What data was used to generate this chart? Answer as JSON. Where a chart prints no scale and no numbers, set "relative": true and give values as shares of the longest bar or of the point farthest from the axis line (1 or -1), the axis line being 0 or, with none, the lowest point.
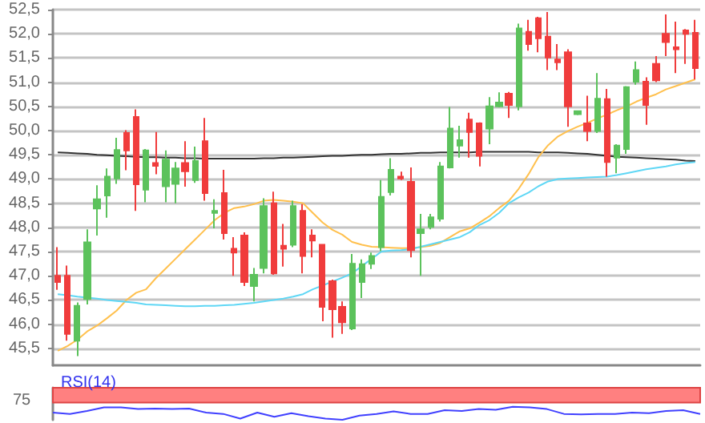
{
  "chart_data": [
    {
      "type": "candlestick",
      "categories": [
        null,
        null,
        null,
        null,
        null,
        null,
        null,
        null,
        null,
        null,
        null,
        null,
        null,
        null,
        null,
        null,
        null,
        null,
        null,
        null,
        null,
        null,
        null,
        null,
        null,
        null,
        null,
        null,
        null,
        null,
        null,
        null,
        null,
        null,
        null,
        null,
        null,
        null,
        null,
        null,
        null,
        null,
        null,
        null,
        null,
        null,
        null,
        null,
        null,
        null,
        null,
        null,
        null,
        null,
        null,
        null,
        null,
        null,
        null,
        null,
        null,
        null,
        null,
        null,
        null,
        null
      ],
      "ohlc": [
        [
          47.0,
          47.59,
          46.71,
          46.87
        ],
        [
          47.0,
          47.21,
          45.66,
          45.8
        ],
        [
          45.66,
          46.45,
          45.34,
          46.38
        ],
        [
          46.52,
          47.96,
          46.41,
          47.69
        ],
        [
          48.39,
          48.87,
          47.83,
          48.58
        ],
        [
          48.66,
          49.22,
          48.2,
          49.05
        ],
        [
          49.01,
          49.85,
          48.9,
          49.6
        ],
        [
          49.95,
          50.01,
          49.18,
          49.59
        ],
        [
          50.28,
          50.44,
          48.34,
          48.89
        ],
        [
          48.78,
          49.62,
          48.52,
          49.59
        ],
        [
          49.33,
          49.97,
          49.1,
          49.27
        ],
        [
          48.85,
          49.59,
          48.52,
          49.4
        ],
        [
          48.9,
          49.35,
          48.5,
          49.22
        ],
        [
          49.33,
          49.78,
          48.84,
          49.16
        ],
        [
          48.98,
          49.67,
          48.92,
          49.37
        ],
        [
          49.78,
          50.26,
          48.55,
          48.71
        ],
        [
          48.3,
          48.58,
          47.98,
          48.34
        ],
        [
          48.71,
          49.19,
          47.75,
          47.88
        ],
        [
          47.56,
          47.8,
          47.0,
          47.48
        ],
        [
          47.83,
          47.9,
          46.79,
          46.87
        ],
        [
          46.79,
          47.16,
          46.47,
          47.02
        ],
        [
          47.16,
          48.6,
          47.05,
          48.44
        ],
        [
          48.5,
          48.74,
          47.02,
          47.05
        ],
        [
          47.62,
          48.07,
          47.19,
          47.56
        ],
        [
          47.64,
          48.55,
          47.59,
          48.44
        ],
        [
          48.34,
          48.48,
          47.05,
          47.41
        ],
        [
          47.83,
          47.96,
          47.38,
          47.73
        ],
        [
          47.64,
          47.66,
          46.06,
          46.36
        ],
        [
          46.89,
          46.92,
          45.72,
          46.31
        ],
        [
          46.36,
          46.47,
          45.8,
          46.04
        ],
        [
          45.91,
          47.45,
          45.88,
          47.25
        ],
        [
          46.87,
          47.34,
          46.54,
          47.24
        ],
        [
          47.25,
          47.48,
          47.14,
          47.41
        ],
        [
          47.59,
          48.98,
          47.51,
          48.63
        ],
        [
          48.73,
          49.43,
          48.66,
          49.19
        ],
        [
          49.05,
          49.15,
          48.98,
          49.01
        ],
        [
          48.94,
          49.24,
          47.38,
          47.53
        ],
        [
          47.88,
          48.28,
          47.0,
          47.96
        ],
        [
          48.01,
          48.28,
          47.96,
          48.21
        ],
        [
          48.18,
          49.35,
          48.12,
          49.26
        ],
        [
          49.24,
          50.49,
          49.22,
          50.04
        ],
        [
          49.69,
          50.1,
          49.44,
          49.8
        ],
        [
          50.23,
          50.37,
          49.44,
          49.97
        ],
        [
          50.15,
          50.17,
          49.26,
          49.48
        ],
        [
          50.04,
          50.69,
          49.72,
          50.5
        ],
        [
          50.5,
          50.79,
          50.48,
          50.58
        ],
        [
          50.76,
          50.8,
          50.26,
          50.53
        ],
        [
          50.5,
          52.21,
          50.42,
          52.11
        ],
        [
          52.04,
          52.29,
          51.65,
          51.79
        ],
        [
          52.32,
          52.35,
          51.62,
          51.91
        ],
        [
          51.94,
          52.45,
          51.25,
          51.51
        ],
        [
          51.47,
          51.79,
          51.25,
          51.41
        ],
        [
          51.62,
          51.68,
          50.08,
          50.5
        ],
        [
          50.34,
          50.42,
          50.32,
          50.4
        ],
        [
          50.15,
          50.72,
          49.78,
          49.99
        ],
        [
          49.99,
          51.19,
          49.95,
          50.66
        ],
        [
          50.65,
          50.86,
          49.05,
          49.35
        ],
        [
          49.44,
          49.72,
          49.12,
          49.69
        ],
        [
          49.62,
          50.92,
          49.52,
          50.9
        ],
        [
          51.01,
          51.43,
          50.95,
          51.25
        ],
        [
          51.01,
          51.1,
          50.12,
          50.53
        ],
        [
          51.38,
          51.54,
          51.0,
          51.04
        ],
        [
          52.0,
          52.4,
          51.54,
          51.83
        ],
        [
          51.72,
          52.25,
          51.19,
          51.68
        ],
        [
          52.07,
          52.1,
          51.38,
          52.0
        ],
        [
          52.02,
          52.29,
          51.06,
          51.29
        ]
      ],
      "colors": [
        "#f03c3c",
        "#f03c3c",
        "#5cc25c",
        "#5cc25c",
        "#5cc25c",
        "#5cc25c",
        "#5cc25c",
        "#f03c3c",
        "#f03c3c",
        "#5cc25c",
        "#f03c3c",
        "#5cc25c",
        "#5cc25c",
        "#f03c3c",
        "#5cc25c",
        "#f03c3c",
        "#5cc25c",
        "#f03c3c",
        "#f03c3c",
        "#f03c3c",
        "#5cc25c",
        "#5cc25c",
        "#f03c3c",
        "#f03c3c",
        "#5cc25c",
        "#f03c3c",
        "#f03c3c",
        "#f03c3c",
        "#f03c3c",
        "#f03c3c",
        "#5cc25c",
        "#5cc25c",
        "#5cc25c",
        "#5cc25c",
        "#5cc25c",
        "#f03c3c",
        "#f03c3c",
        "#5cc25c",
        "#5cc25c",
        "#5cc25c",
        "#5cc25c",
        "#5cc25c",
        "#f03c3c",
        "#f03c3c",
        "#5cc25c",
        "#5cc25c",
        "#f03c3c",
        "#5cc25c",
        "#f03c3c",
        "#f03c3c",
        "#f03c3c",
        "#f03c3c",
        "#f03c3c",
        "#5cc25c",
        "#f03c3c",
        "#5cc25c",
        "#f03c3c",
        "#5cc25c",
        "#5cc25c",
        "#5cc25c",
        "#f03c3c",
        "#f03c3c",
        "#f03c3c",
        "#f03c3c",
        "#f03c3c",
        "#f03c3c"
      ],
      "series": [
        {
          "type": "line",
          "color": "#333333",
          "values": [
            49.55,
            49.54,
            49.53,
            49.52,
            49.5,
            49.49,
            49.48,
            49.47,
            49.46,
            49.45,
            49.45,
            49.44,
            49.44,
            49.43,
            49.43,
            49.42,
            49.42,
            49.42,
            49.42,
            49.42,
            49.42,
            49.43,
            49.43,
            49.44,
            49.44,
            49.45,
            49.46,
            49.47,
            49.48,
            49.48,
            49.49,
            49.5,
            49.5,
            49.51,
            49.52,
            49.52,
            49.53,
            49.54,
            49.54,
            49.55,
            49.55,
            49.55,
            49.55,
            49.56,
            49.56,
            49.56,
            49.56,
            49.56,
            49.56,
            49.55,
            49.55,
            49.55,
            49.54,
            49.53,
            49.52,
            49.5,
            49.48,
            49.46,
            49.45,
            49.44,
            49.43,
            49.42,
            49.41,
            49.4,
            49.38,
            49.37
          ]
        },
        {
          "type": "line",
          "color": "#ffc04d",
          "values": [
            45.45,
            45.55,
            45.68,
            45.85,
            45.97,
            46.12,
            46.28,
            46.5,
            46.65,
            46.72,
            46.95,
            47.15,
            47.35,
            47.55,
            47.75,
            47.95,
            48.15,
            48.3,
            48.4,
            48.43,
            48.48,
            48.55,
            48.57,
            48.55,
            48.53,
            48.5,
            48.3,
            48.1,
            47.95,
            47.85,
            47.7,
            47.64,
            47.6,
            47.59,
            47.58,
            47.57,
            47.57,
            47.59,
            47.62,
            47.68,
            47.8,
            47.92,
            47.98,
            48.1,
            48.23,
            48.4,
            48.55,
            48.8,
            49.1,
            49.45,
            49.7,
            49.88,
            49.99,
            50.08,
            50.16,
            50.25,
            50.33,
            50.42,
            50.5,
            50.6,
            50.68,
            50.75,
            50.85,
            50.92,
            50.99,
            51.06
          ]
        },
        {
          "type": "line",
          "color": "#5fd7f5",
          "values": [
            46.62,
            46.6,
            46.57,
            46.55,
            46.53,
            46.5,
            46.48,
            46.46,
            46.44,
            46.41,
            46.4,
            46.39,
            46.38,
            46.37,
            46.37,
            46.38,
            46.38,
            46.39,
            46.4,
            46.42,
            46.44,
            46.47,
            46.5,
            46.53,
            46.57,
            46.62,
            46.72,
            46.8,
            46.88,
            46.96,
            47.05,
            47.2,
            47.35,
            47.5,
            47.52,
            47.53,
            47.55,
            47.6,
            47.65,
            47.7,
            47.75,
            47.8,
            47.9,
            48.05,
            48.15,
            48.3,
            48.5,
            48.62,
            48.72,
            48.85,
            48.95,
            49.0,
            49.01,
            49.02,
            49.03,
            49.04,
            49.05,
            49.08,
            49.12,
            49.16,
            49.2,
            49.23,
            49.26,
            49.3,
            49.33,
            49.35
          ]
        }
      ],
      "ylim": [
        45.15,
        52.5
      ],
      "yticks": [
        {
          "value": 45.5,
          "label": "45,5"
        },
        {
          "value": 46,
          "label": "46,0"
        },
        {
          "value": 46.5,
          "label": "46,5"
        },
        {
          "value": 47,
          "label": "47,0"
        },
        {
          "value": 47.5,
          "label": "47,5"
        },
        {
          "value": 48,
          "label": "48,0"
        },
        {
          "value": 48.5,
          "label": "48,5"
        },
        {
          "value": 49,
          "label": "49,0"
        },
        {
          "value": 49.5,
          "label": "49,5"
        },
        {
          "value": 50,
          "label": "50,0"
        },
        {
          "value": 50.5,
          "label": "50,5"
        },
        {
          "value": 51,
          "label": "51,0"
        },
        {
          "value": 51.5,
          "label": "51,5"
        },
        {
          "value": 52,
          "label": "52,0"
        },
        {
          "value": 52.5,
          "label": "52,5"
        }
      ],
      "grid": "y",
      "tick_labels": "y"
    },
    {
      "type": "line",
      "title": "RSI(14)",
      "categories": [
        null,
        null,
        null,
        null,
        null,
        null,
        null,
        null,
        null,
        null,
        null,
        null,
        null,
        null,
        null,
        null,
        null,
        null,
        null,
        null,
        null,
        null,
        null,
        null,
        null,
        null,
        null,
        null,
        null,
        null,
        null,
        null,
        null,
        null,
        null,
        null,
        null,
        null,
        null
      ],
      "series": [
        {
          "color": "#4040ff",
          "values": [
            0.55,
            0.45,
            0.68,
            0.95,
            0.95,
            0.82,
            0.86,
            0.82,
            0.86,
            0.55,
            0.45,
            0.09,
            0.55,
            0.23,
            0.5,
            0.27,
            0.09,
            0,
            0.32,
            0.45,
            0.64,
            0.45,
            0.45,
            0.73,
            0.68,
            0.82,
            0.77,
            1,
            0.95,
            0.82,
            0.45,
            0.41,
            0.45,
            0.45,
            0.55,
            0.5,
            0.68,
            0.73,
            0.45
          ]
        }
      ],
      "relative": true,
      "bands": [
        {
          "axis": "y",
          "from": 1.32,
          "to": 2.45,
          "color": "#ff8080"
        }
      ],
      "annotations": [
        "75"
      ],
      "tick_labels": false
    }
  ]
}
